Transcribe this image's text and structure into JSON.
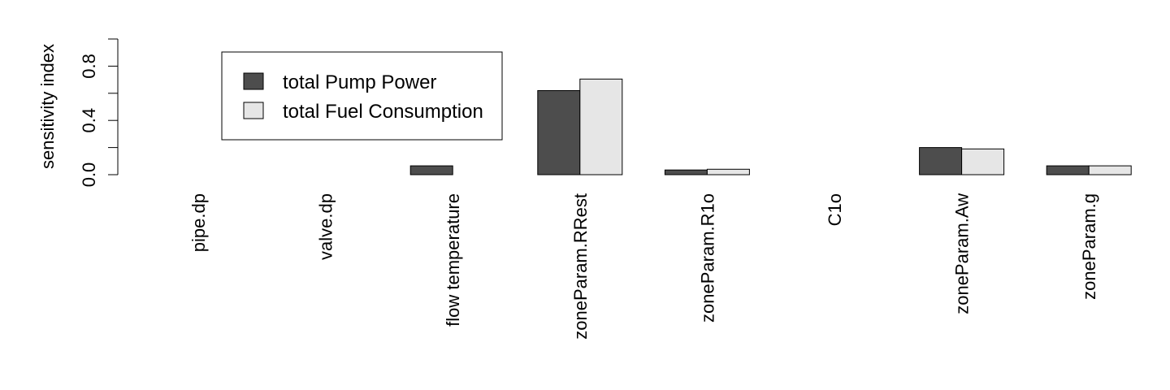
{
  "chart_data": {
    "type": "bar",
    "title": "",
    "xlabel": "",
    "ylabel": "sensitivity index",
    "ylim": [
      0,
      1
    ],
    "yticks": [
      0.0,
      0.2,
      0.4,
      0.6,
      0.8,
      1.0
    ],
    "ytick_labels": [
      "0.0",
      "0.4",
      "0.8"
    ],
    "ytick_label_values": [
      0.0,
      0.4,
      0.8
    ],
    "categories": [
      "pipe.dp",
      "valve.dp",
      "flow temperature",
      "zoneParam.RRest",
      "zoneParam.R1o",
      "C1o",
      "zoneParam.Aw",
      "zoneParam.g"
    ],
    "series": [
      {
        "name": "total Pump Power",
        "color": "#4d4d4d",
        "values": [
          0.0,
          0.0,
          0.065,
          0.62,
          0.035,
          0.0,
          0.2,
          0.065
        ]
      },
      {
        "name": "total Fuel Consumption",
        "color": "#e6e6e6",
        "values": [
          0.0,
          0.0,
          0.0,
          0.705,
          0.04,
          0.0,
          0.19,
          0.065
        ]
      }
    ],
    "grid": false,
    "legend_position": "top-left"
  }
}
